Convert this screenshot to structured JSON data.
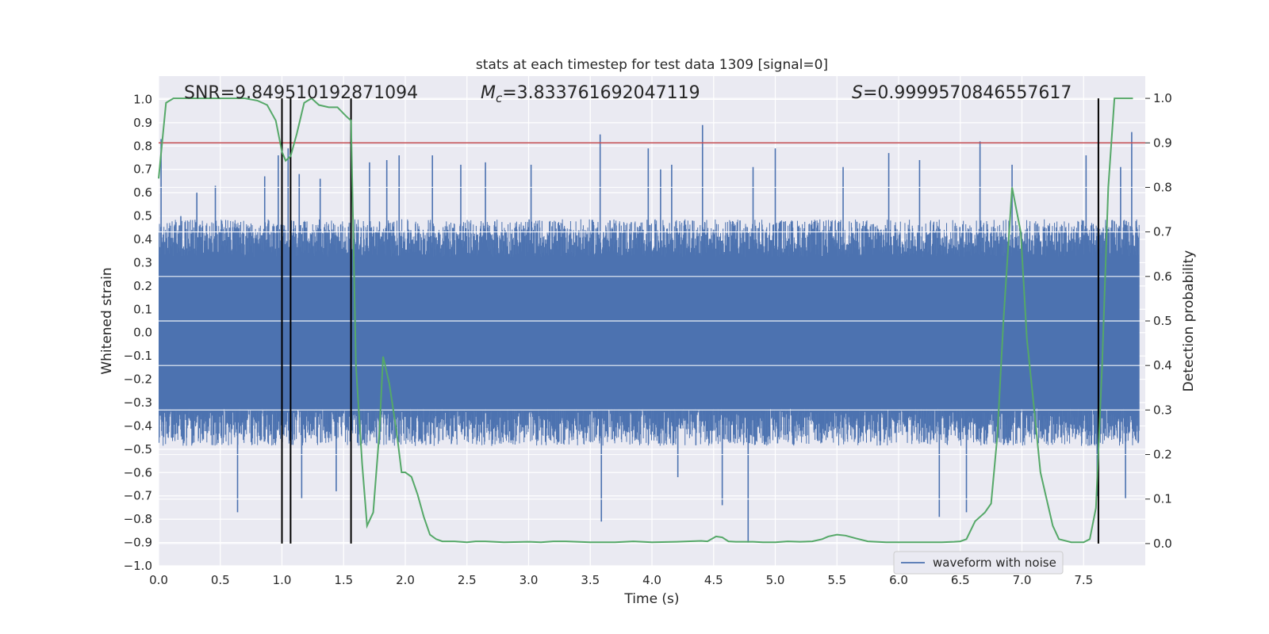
{
  "chart_data": {
    "type": "line",
    "title": "stats at each timestep for test data 1309 [signal=0]",
    "xlabel": "Time (s)",
    "ylabel_left": "Whitened strain",
    "ylabel_right": "Detection probability",
    "xlim": [
      0.0,
      8.0
    ],
    "ylim_left": [
      -1.0,
      1.1
    ],
    "ylim_right": [
      -0.05,
      1.05
    ],
    "x_ticks": [
      "0.0",
      "0.5",
      "1.0",
      "1.5",
      "2.0",
      "2.5",
      "3.0",
      "3.5",
      "4.0",
      "4.5",
      "5.0",
      "5.5",
      "6.0",
      "6.5",
      "7.0",
      "7.5"
    ],
    "x_tick_values": [
      0.0,
      0.5,
      1.0,
      1.5,
      2.0,
      2.5,
      3.0,
      3.5,
      4.0,
      4.5,
      5.0,
      5.5,
      6.0,
      6.5,
      7.0,
      7.5
    ],
    "y_ticks_left": [
      "1.0",
      "0.9",
      "0.8",
      "0.7",
      "0.6",
      "0.5",
      "0.4",
      "0.3",
      "0.2",
      "0.1",
      "0.0",
      "−0.1",
      "−0.2",
      "−0.3",
      "−0.4",
      "−0.5",
      "−0.6",
      "−0.7",
      "−0.8",
      "−0.9",
      "−1.0"
    ],
    "y_tick_values_left": [
      1.0,
      0.9,
      0.8,
      0.7,
      0.6,
      0.5,
      0.4,
      0.3,
      0.2,
      0.1,
      0.0,
      -0.1,
      -0.2,
      -0.3,
      -0.4,
      -0.5,
      -0.6,
      -0.7,
      -0.8,
      -0.9,
      -1.0
    ],
    "y_ticks_right": [
      "1.0",
      "0.9",
      "0.8",
      "0.7",
      "0.6",
      "0.5",
      "0.4",
      "0.3",
      "0.2",
      "0.1",
      "0.0"
    ],
    "y_tick_values_right": [
      1.0,
      0.9,
      0.8,
      0.7,
      0.6,
      0.5,
      0.4,
      0.3,
      0.2,
      0.1,
      0.0
    ],
    "annotations": {
      "snr": "SNR=9.849510192871094",
      "mc_symbol": "M",
      "mc_sub": "c",
      "mc_value": "=3.833761692047119",
      "s_symbol": "S",
      "s_value": "=0.9999570846557617"
    },
    "legend": {
      "label": "waveform with noise",
      "position": "lower-right"
    },
    "threshold": {
      "value": 0.9,
      "color": "#c44e52"
    },
    "detection_lines_x": [
      1.0,
      1.07,
      1.56,
      7.62
    ],
    "waveform": {
      "name": "waveform with noise",
      "color": "#4c72b0",
      "t_start": 0.0,
      "t_end": 7.95,
      "samples": 2400,
      "core_amplitude": 0.36,
      "spikes": [
        [
          0.02,
          0.83
        ],
        [
          0.18,
          0.5
        ],
        [
          0.31,
          0.6
        ],
        [
          0.46,
          0.63
        ],
        [
          0.64,
          -0.77
        ],
        [
          0.86,
          0.67
        ],
        [
          0.97,
          0.76
        ],
        [
          1.05,
          0.79
        ],
        [
          1.14,
          0.68
        ],
        [
          1.16,
          -0.71
        ],
        [
          1.31,
          0.66
        ],
        [
          1.44,
          -0.68
        ],
        [
          1.71,
          0.73
        ],
        [
          1.85,
          0.74
        ],
        [
          1.95,
          0.76
        ],
        [
          2.22,
          0.76
        ],
        [
          2.45,
          0.72
        ],
        [
          2.65,
          0.73
        ],
        [
          3.02,
          0.72
        ],
        [
          3.58,
          0.85
        ],
        [
          3.59,
          -0.81
        ],
        [
          3.97,
          0.79
        ],
        [
          4.07,
          0.7
        ],
        [
          4.16,
          0.72
        ],
        [
          4.21,
          -0.62
        ],
        [
          4.41,
          0.89
        ],
        [
          4.57,
          -0.74
        ],
        [
          4.78,
          -0.9
        ],
        [
          4.82,
          0.71
        ],
        [
          5.0,
          0.79
        ],
        [
          5.55,
          0.71
        ],
        [
          5.92,
          0.77
        ],
        [
          6.17,
          0.74
        ],
        [
          6.33,
          -0.79
        ],
        [
          6.55,
          -0.77
        ],
        [
          6.66,
          0.82
        ],
        [
          6.92,
          0.72
        ],
        [
          7.52,
          0.76
        ],
        [
          7.61,
          -0.7
        ],
        [
          7.8,
          0.71
        ],
        [
          7.84,
          -0.71
        ],
        [
          7.89,
          0.86
        ]
      ]
    },
    "detection_probability": {
      "name": "Detection probability",
      "color": "#55a868",
      "x": [
        0.0,
        0.06,
        0.12,
        0.2,
        0.3,
        0.5,
        0.7,
        0.8,
        0.88,
        0.95,
        1.0,
        1.03,
        1.07,
        1.12,
        1.18,
        1.24,
        1.3,
        1.38,
        1.45,
        1.52,
        1.56,
        1.6,
        1.65,
        1.69,
        1.74,
        1.79,
        1.82,
        1.87,
        1.93,
        1.97,
        2.0,
        2.05,
        2.1,
        2.15,
        2.2,
        2.25,
        2.3,
        2.4,
        2.5,
        2.57,
        2.65,
        2.8,
        3.0,
        3.1,
        3.2,
        3.3,
        3.5,
        3.7,
        3.85,
        4.0,
        4.2,
        4.4,
        4.45,
        4.52,
        4.57,
        4.62,
        4.68,
        4.75,
        4.82,
        4.9,
        5.0,
        5.1,
        5.2,
        5.3,
        5.38,
        5.43,
        5.5,
        5.57,
        5.65,
        5.75,
        5.9,
        6.05,
        6.2,
        6.35,
        6.45,
        6.5,
        6.55,
        6.62,
        6.7,
        6.75,
        6.8,
        6.85,
        6.92,
        6.99,
        7.04,
        7.1,
        7.15,
        7.2,
        7.25,
        7.3,
        7.4,
        7.5,
        7.55,
        7.6,
        7.65,
        7.7,
        7.75,
        7.8,
        7.9
      ],
      "y": [
        0.82,
        0.99,
        1.0,
        1.0,
        1.0,
        1.0,
        1.0,
        0.995,
        0.985,
        0.95,
        0.88,
        0.86,
        0.87,
        0.92,
        0.99,
        1.0,
        0.985,
        0.98,
        0.98,
        0.96,
        0.95,
        0.4,
        0.18,
        0.04,
        0.07,
        0.25,
        0.42,
        0.36,
        0.25,
        0.16,
        0.16,
        0.15,
        0.11,
        0.06,
        0.02,
        0.01,
        0.005,
        0.005,
        0.003,
        0.005,
        0.005,
        0.003,
        0.004,
        0.003,
        0.005,
        0.005,
        0.003,
        0.003,
        0.005,
        0.003,
        0.004,
        0.006,
        0.005,
        0.016,
        0.014,
        0.005,
        0.004,
        0.004,
        0.004,
        0.003,
        0.003,
        0.005,
        0.004,
        0.005,
        0.01,
        0.016,
        0.02,
        0.018,
        0.012,
        0.005,
        0.003,
        0.003,
        0.003,
        0.003,
        0.004,
        0.005,
        0.01,
        0.05,
        0.07,
        0.09,
        0.24,
        0.5,
        0.8,
        0.7,
        0.46,
        0.3,
        0.16,
        0.1,
        0.04,
        0.01,
        0.003,
        0.003,
        0.01,
        0.08,
        0.4,
        0.8,
        1.0,
        1.0,
        1.0
      ]
    }
  }
}
